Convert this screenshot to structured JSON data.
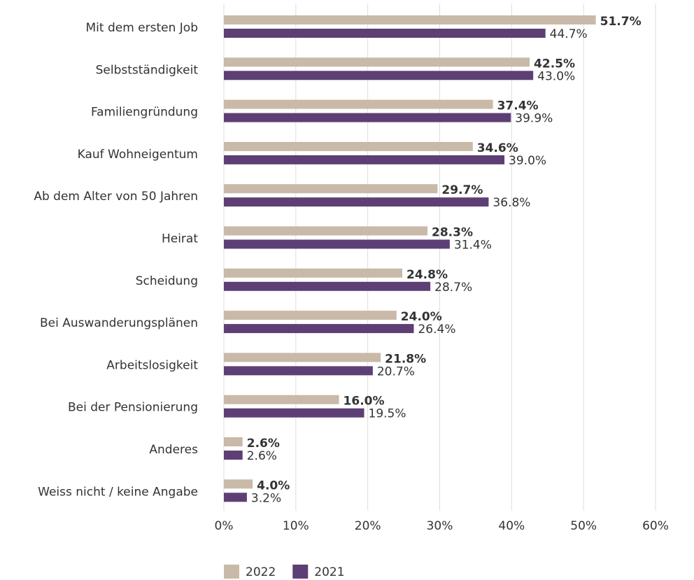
{
  "chart_data": {
    "type": "bar",
    "orientation": "horizontal",
    "categories": [
      "Mit dem ersten Job",
      "Selbstständigkeit",
      "Familiengründung",
      "Kauf Wohneigentum",
      "Ab dem Alter von 50 Jahren",
      "Heirat",
      "Scheidung",
      "Bei Auswanderungsplänen",
      "Arbeitslosigkeit",
      "Bei der Pensionierung",
      "Anderes",
      "Weiss nicht / keine Angabe"
    ],
    "series": [
      {
        "name": "2022",
        "color": "#c9b9a8",
        "values": [
          51.7,
          42.5,
          37.4,
          34.6,
          29.7,
          28.3,
          24.8,
          24.0,
          21.8,
          16.0,
          2.6,
          4.0
        ],
        "value_labels": [
          "51.7%",
          "42.5%",
          "37.4%",
          "34.6%",
          "29.7%",
          "28.3%",
          "24.8%",
          "24.0%",
          "21.8%",
          "16.0%",
          "2.6%",
          "4.0%"
        ]
      },
      {
        "name": "2021",
        "color": "#5e3f75",
        "values": [
          44.7,
          43.0,
          39.9,
          39.0,
          36.8,
          31.4,
          28.7,
          26.4,
          20.7,
          19.5,
          2.6,
          3.2
        ],
        "value_labels": [
          "44.7%",
          "43.0%",
          "39.9%",
          "39.0%",
          "36.8%",
          "31.4%",
          "28.7%",
          "26.4%",
          "20.7%",
          "19.5%",
          "2.6%",
          "3.2%"
        ]
      }
    ],
    "xlim": [
      0,
      60
    ],
    "xticks": [
      {
        "value": 0,
        "label": "0%"
      },
      {
        "value": 10,
        "label": "10%"
      },
      {
        "value": 20,
        "label": "20%"
      },
      {
        "value": 30,
        "label": "30%"
      },
      {
        "value": 40,
        "label": "40%"
      },
      {
        "value": 50,
        "label": "50%"
      },
      {
        "value": 60,
        "label": "60%"
      }
    ],
    "grid": true,
    "legend": "bottom"
  }
}
